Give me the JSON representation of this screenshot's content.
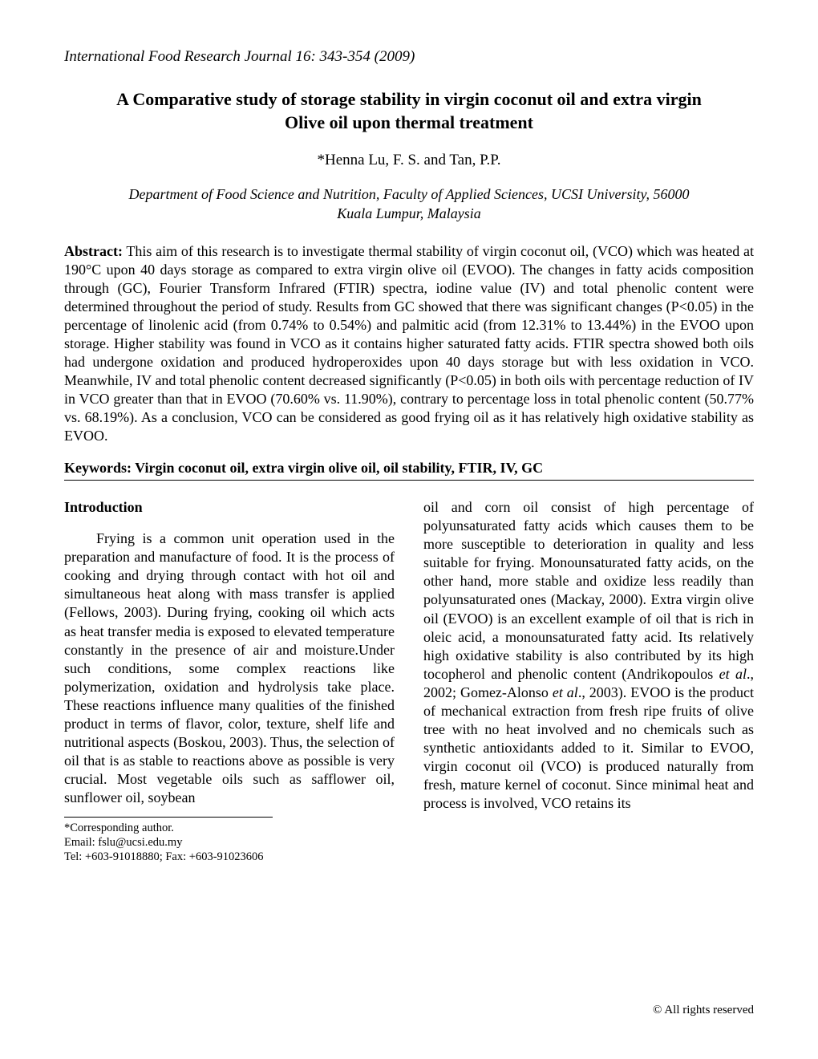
{
  "journal_header": "International Food Research Journal 16: 343-354 (2009)",
  "title_line1": "A Comparative study of storage stability in virgin coconut oil and extra virgin",
  "title_line2": "Olive oil upon thermal treatment",
  "authors": "*Henna Lu, F. S. and Tan, P.P.",
  "affiliation_line1": "Department of Food Science and Nutrition, Faculty of Applied Sciences, UCSI University, 56000",
  "affiliation_line2": "Kuala Lumpur, Malaysia",
  "abstract_label": "Abstract:",
  "abstract_text": " This aim of this research is to investigate thermal stability of virgin coconut oil, (VCO) which was heated at 190°C upon 40 days storage as compared to extra virgin olive oil (EVOO). The changes in fatty acids composition through (GC), Fourier Transform Infrared (FTIR) spectra, iodine value (IV) and total phenolic content were determined throughout the period of study. Results from GC showed that there was significant changes (P<0.05) in the percentage of linolenic acid (from 0.74% to 0.54%) and palmitic acid (from 12.31% to 13.44%) in the EVOO upon storage.  Higher stability was found in VCO as it contains higher saturated fatty acids. FTIR spectra showed both oils had undergone oxidation and produced hydroperoxides upon 40 days storage but with less oxidation in VCO.  Meanwhile, IV and total phenolic content decreased significantly (P<0.05) in both oils with percentage reduction of IV in VCO greater than that in EVOO (70.60% vs. 11.90%), contrary to percentage loss in total phenolic content (50.77% vs. 68.19%). As a conclusion, VCO can be considered as good frying oil as it has relatively high oxidative stability as EVOO.",
  "keywords": "Keywords: Virgin coconut oil, extra virgin olive oil, oil stability, FTIR, IV, GC",
  "intro_heading": "Introduction",
  "col1_text": "Frying is a common unit operation used in the preparation and manufacture of food. It is the process of cooking and drying through contact with hot oil and simultaneous heat along with mass transfer is applied (Fellows, 2003). During frying, cooking oil which acts as heat transfer media is exposed to elevated temperature constantly in the presence of air and moisture.Under such conditions, some complex reactions like polymerization, oxidation and hydrolysis take place. These reactions influence many qualities of the finished product in terms of flavor, color, texture, shelf life and nutritional aspects (Boskou, 2003). Thus, the selection of oil that is as stable to reactions above as possible is very crucial. Most vegetable oils such as safflower oil, sunflower oil, soybean",
  "col2_text_a": "oil and corn oil consist of high percentage of polyunsaturated fatty acids which causes them to be more susceptible to deterioration in quality and less suitable for frying. Monounsaturated fatty acids, on the other hand, more stable and oxidize less readily than polyunsaturated ones (Mackay, 2000). Extra virgin olive oil (EVOO) is an excellent example of oil that is rich in oleic acid, a monounsaturated fatty acid. Its relatively high oxidative stability is also contributed by its high tocopherol and phenolic content (Andrikopoulos ",
  "col2_ital1": "et al",
  "col2_text_b": "., 2002; Gomez-Alonso ",
  "col2_ital2": "et al",
  "col2_text_c": "., 2003). EVOO is the product of mechanical extraction from fresh ripe fruits of olive tree with no heat involved and no chemicals such as synthetic antioxidants added to it. Similar to EVOO, virgin coconut oil (VCO) is produced naturally from fresh, mature kernel of coconut. Since minimal heat and process is involved, VCO retains its",
  "footnote_l1": "*Corresponding author.",
  "footnote_l2": "Email: fslu@ucsi.edu.my",
  "footnote_l3": "Tel: +603-91018880; Fax: +603-91023606",
  "copyright": "© All rights reserved"
}
